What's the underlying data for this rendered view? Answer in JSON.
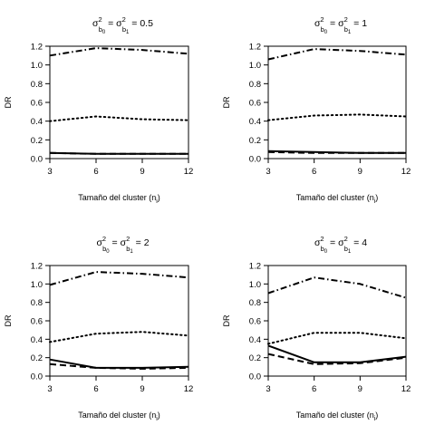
{
  "chart_data": [
    {
      "type": "line",
      "title": {
        "prefix": "σ",
        "sup": "2",
        "sub1": "b",
        "sub2": "0",
        "eq": "= σ",
        "sub3": "b",
        "sub4": "1",
        "value": "= 0.5"
      },
      "xlabel": {
        "main": "Tamaño del cluster (n",
        "sub": "i",
        "close": ")"
      },
      "ylabel": "DR",
      "x_ticks": [
        "3",
        "6",
        "9",
        "12"
      ],
      "y_ticks": [
        "0.0",
        "0.2",
        "0.4",
        "0.6",
        "0.8",
        "1.0",
        "1.2"
      ],
      "xlim": [
        3,
        12
      ],
      "ylim": [
        0,
        1.2
      ],
      "x": [
        3,
        6,
        9,
        12
      ],
      "series": [
        {
          "style": "dashdot",
          "values": [
            1.1,
            1.18,
            1.16,
            1.12
          ]
        },
        {
          "style": "dotted",
          "values": [
            0.4,
            0.45,
            0.42,
            0.41
          ]
        },
        {
          "style": "solid",
          "values": [
            0.06,
            0.05,
            0.05,
            0.05
          ]
        },
        {
          "style": "dashed",
          "values": [
            0.06,
            0.05,
            0.05,
            0.05
          ]
        }
      ]
    },
    {
      "type": "line",
      "title": {
        "prefix": "σ",
        "sup": "2",
        "sub1": "b",
        "sub2": "0",
        "eq": "= σ",
        "sub3": "b",
        "sub4": "1",
        "value": "= 1"
      },
      "xlabel": {
        "main": "Tamaño del cluster (n",
        "sub": "i",
        "close": ")"
      },
      "ylabel": "DR",
      "x_ticks": [
        "3",
        "6",
        "9",
        "12"
      ],
      "y_ticks": [
        "0.0",
        "0.2",
        "0.4",
        "0.6",
        "0.8",
        "1.0",
        "1.2"
      ],
      "xlim": [
        3,
        12
      ],
      "ylim": [
        0,
        1.2
      ],
      "x": [
        3,
        6,
        9,
        12
      ],
      "series": [
        {
          "style": "dashdot",
          "values": [
            1.06,
            1.17,
            1.15,
            1.11
          ]
        },
        {
          "style": "dotted",
          "values": [
            0.41,
            0.46,
            0.47,
            0.45
          ]
        },
        {
          "style": "solid",
          "values": [
            0.08,
            0.07,
            0.06,
            0.06
          ]
        },
        {
          "style": "dashed",
          "values": [
            0.07,
            0.06,
            0.06,
            0.06
          ]
        }
      ]
    },
    {
      "type": "line",
      "title": {
        "prefix": "σ",
        "sup": "2",
        "sub1": "b",
        "sub2": "0",
        "eq": "= σ",
        "sub3": "b",
        "sub4": "1",
        "value": "= 2"
      },
      "xlabel": {
        "main": "Tamaño del cluster (n",
        "sub": "i",
        "close": ")"
      },
      "ylabel": "DR",
      "x_ticks": [
        "3",
        "6",
        "9",
        "12"
      ],
      "y_ticks": [
        "0.0",
        "0.2",
        "0.4",
        "0.6",
        "0.8",
        "1.0",
        "1.2"
      ],
      "xlim": [
        3,
        12
      ],
      "ylim": [
        0,
        1.2
      ],
      "x": [
        3,
        6,
        9,
        12
      ],
      "series": [
        {
          "style": "dashdot",
          "values": [
            0.99,
            1.13,
            1.11,
            1.07
          ]
        },
        {
          "style": "dotted",
          "values": [
            0.37,
            0.46,
            0.48,
            0.44
          ]
        },
        {
          "style": "solid",
          "values": [
            0.18,
            0.09,
            0.09,
            0.1
          ]
        },
        {
          "style": "dashed",
          "values": [
            0.13,
            0.09,
            0.08,
            0.09
          ]
        }
      ]
    },
    {
      "type": "line",
      "title": {
        "prefix": "σ",
        "sup": "2",
        "sub1": "b",
        "sub2": "0",
        "eq": "= σ",
        "sub3": "b",
        "sub4": "1",
        "value": "= 4"
      },
      "xlabel": {
        "main": "Tamaño del cluster (n",
        "sub": "i",
        "close": ")"
      },
      "ylabel": "DR",
      "x_ticks": [
        "3",
        "6",
        "9",
        "12"
      ],
      "y_ticks": [
        "0.0",
        "0.2",
        "0.4",
        "0.6",
        "0.8",
        "1.0",
        "1.2"
      ],
      "xlim": [
        3,
        12
      ],
      "ylim": [
        0,
        1.2
      ],
      "x": [
        3,
        6,
        9,
        12
      ],
      "series": [
        {
          "style": "dashdot",
          "values": [
            0.9,
            1.07,
            1.0,
            0.85
          ]
        },
        {
          "style": "dotted",
          "values": [
            0.35,
            0.47,
            0.47,
            0.41
          ]
        },
        {
          "style": "solid",
          "values": [
            0.33,
            0.15,
            0.15,
            0.21
          ]
        },
        {
          "style": "dashed",
          "values": [
            0.24,
            0.13,
            0.14,
            0.2
          ]
        }
      ]
    }
  ]
}
